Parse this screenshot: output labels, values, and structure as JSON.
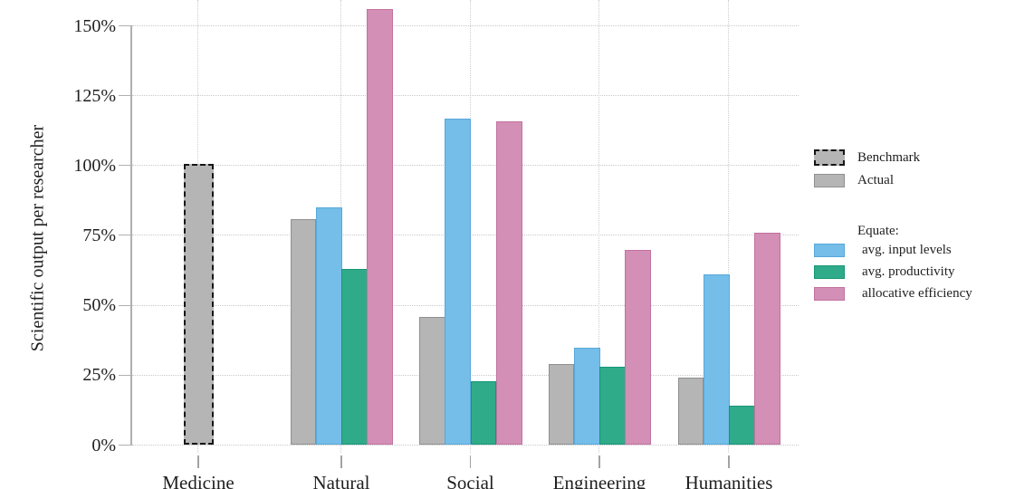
{
  "chart_data": {
    "type": "bar",
    "ylabel": "Scientific output per researcher",
    "ylim": [
      0,
      160
    ],
    "ytick_labels": [
      "0%",
      "25%",
      "50%",
      "75%",
      "100%",
      "125%",
      "150%"
    ],
    "ytick_values": [
      0,
      25,
      50,
      75,
      100,
      125,
      150
    ],
    "categories": [
      "Medicine",
      "Natural",
      "Social",
      "Engineering",
      "Humanities"
    ],
    "benchmark": {
      "label": "Benchmark",
      "category": "Medicine",
      "value": 100,
      "color": "#b5b5b5",
      "edge": "#161616"
    },
    "series": [
      {
        "name": "Actual",
        "color": "#b5b5b5",
        "edge": "#8f8f8f",
        "values": [
          null,
          81,
          46,
          29,
          24
        ]
      },
      {
        "name": "avg. input levels",
        "color": "#74bee9",
        "edge": "#58a8d9",
        "values": [
          null,
          85,
          117,
          35,
          61
        ]
      },
      {
        "name": "avg. productivity",
        "color": "#30ab8a",
        "edge": "#169578",
        "values": [
          null,
          63,
          23,
          28,
          14
        ]
      },
      {
        "name": "allocative efficiency",
        "color": "#d38fb5",
        "edge": "#c2729f",
        "values": [
          null,
          156,
          116,
          70,
          76
        ]
      }
    ],
    "legend_equate_label": "Equate:",
    "legend_position": "right",
    "grid": "dotted"
  },
  "colors": {
    "background": "#ffffff",
    "grid": "#c9c9c9",
    "axis": "#b0b0b0",
    "text": "#1f1f1f"
  }
}
